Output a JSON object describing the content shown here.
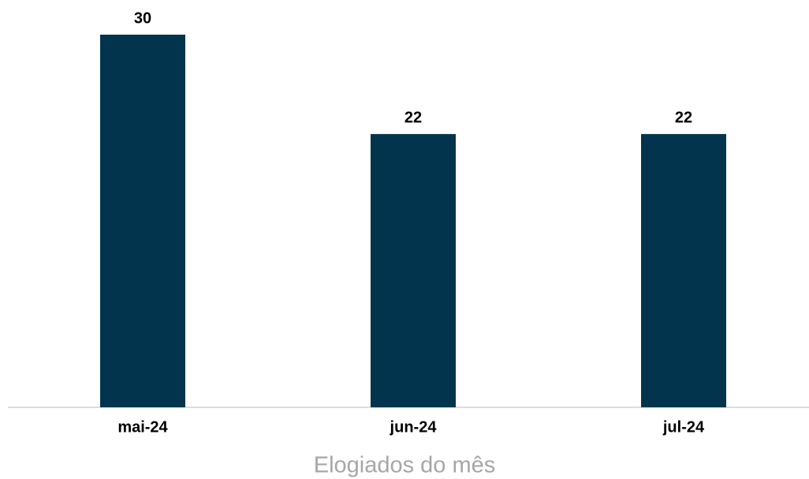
{
  "chart_data": {
    "type": "bar",
    "x_label": "Elogiados do mês",
    "categories": [
      "mai-24",
      "jun-24",
      "jul-24"
    ],
    "values": [
      30,
      22,
      22
    ],
    "color": "#02344d",
    "grid": false
  }
}
